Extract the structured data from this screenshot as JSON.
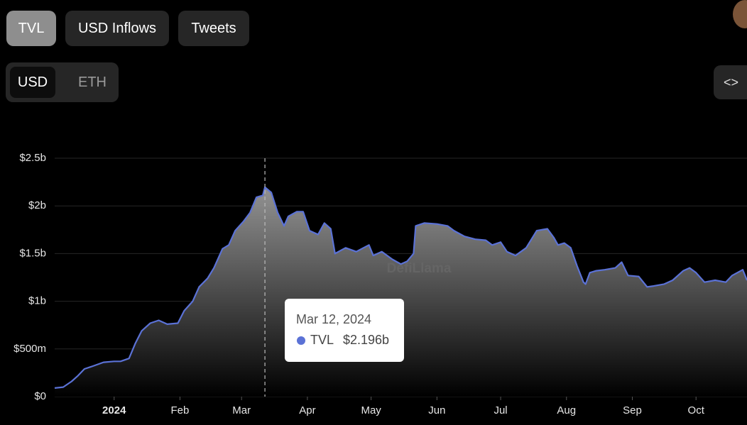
{
  "controls": {
    "metrics": [
      "TVL",
      "USD Inflows",
      "Tweets"
    ],
    "denominations": [
      "USD",
      "ETH"
    ],
    "embed": "<>"
  },
  "watermark": "DefiLlama",
  "chart_data": {
    "type": "area",
    "x": [
      -28,
      -24,
      -20,
      -17,
      -14,
      -10,
      -5,
      0,
      3,
      7,
      10,
      13,
      17,
      21,
      25,
      30,
      33,
      37,
      40,
      44,
      47,
      51,
      54,
      57,
      61,
      64,
      67,
      70,
      71,
      74,
      77,
      80,
      82,
      86,
      89,
      92,
      96,
      99,
      102,
      104,
      109,
      114,
      120,
      122,
      126,
      131,
      135,
      138,
      141,
      142,
      146,
      152,
      157,
      160,
      165,
      170,
      175,
      178,
      182,
      185,
      189,
      194,
      199,
      204,
      207,
      209,
      212,
      215,
      218,
      221,
      222,
      224,
      227,
      231,
      236,
      239,
      242,
      247,
      251,
      254,
      259,
      263,
      268,
      271,
      274,
      278,
      283,
      288,
      291,
      296,
      298
    ],
    "series": [
      {
        "name": "TVL",
        "color": "#5b72d6",
        "values": [
          90000000,
          100000000,
          160000000,
          220000000,
          290000000,
          320000000,
          360000000,
          370000000,
          370000000,
          400000000,
          560000000,
          690000000,
          770000000,
          800000000,
          760000000,
          770000000,
          900000000,
          1000000000,
          1150000000,
          1240000000,
          1350000000,
          1550000000,
          1590000000,
          1740000000,
          1840000000,
          1930000000,
          2090000000,
          2110000000,
          2196000000,
          2140000000,
          1930000000,
          1790000000,
          1890000000,
          1940000000,
          1940000000,
          1740000000,
          1700000000,
          1820000000,
          1760000000,
          1500000000,
          1560000000,
          1520000000,
          1590000000,
          1480000000,
          1520000000,
          1440000000,
          1390000000,
          1420000000,
          1500000000,
          1790000000,
          1820000000,
          1810000000,
          1790000000,
          1740000000,
          1680000000,
          1650000000,
          1640000000,
          1590000000,
          1620000000,
          1520000000,
          1480000000,
          1560000000,
          1740000000,
          1760000000,
          1670000000,
          1590000000,
          1610000000,
          1560000000,
          1370000000,
          1200000000,
          1180000000,
          1300000000,
          1320000000,
          1330000000,
          1350000000,
          1410000000,
          1270000000,
          1260000000,
          1150000000,
          1160000000,
          1180000000,
          1220000000,
          1320000000,
          1350000000,
          1300000000,
          1200000000,
          1220000000,
          1200000000,
          1270000000,
          1330000000,
          1220000000
        ]
      }
    ],
    "xlim": [
      -28,
      298
    ],
    "xticks": [
      {
        "value": 0,
        "label": "2024"
      },
      {
        "value": 31,
        "label": "Feb"
      },
      {
        "value": 60,
        "label": "Mar"
      },
      {
        "value": 91,
        "label": "Apr"
      },
      {
        "value": 121,
        "label": "May"
      },
      {
        "value": 152,
        "label": "Jun"
      },
      {
        "value": 182,
        "label": "Jul"
      },
      {
        "value": 213,
        "label": "Aug"
      },
      {
        "value": 244,
        "label": "Sep"
      },
      {
        "value": 274,
        "label": "Oct"
      }
    ],
    "ylim": [
      0,
      2500000000
    ],
    "yticks": [
      {
        "value": 0,
        "label": "$0"
      },
      {
        "value": 500000000,
        "label": "$500m"
      },
      {
        "value": 1000000000,
        "label": "$1b"
      },
      {
        "value": 1500000000,
        "label": "$1.5b"
      },
      {
        "value": 2000000000,
        "label": "$2b"
      },
      {
        "value": 2500000000,
        "label": "$2.5b"
      }
    ],
    "grid": true,
    "tooltip": {
      "x": 71,
      "date": "Mar 12, 2024",
      "value": 2196000000,
      "value_label": "$2.196b"
    }
  }
}
